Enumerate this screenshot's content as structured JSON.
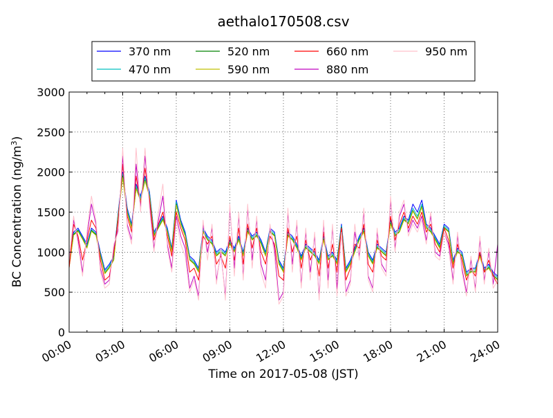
{
  "chart_data": {
    "type": "line",
    "title": "aethalo170508.csv",
    "xlabel": "Time on 2017-05-08 (JST)",
    "ylabel_main": "BC Concentration (ng/m",
    "ylabel_sup": "3",
    "ylabel_close": ")",
    "x_unit": "hours",
    "xlim": [
      0,
      24
    ],
    "ylim": [
      0,
      3000
    ],
    "xticks": [
      0,
      3,
      6,
      9,
      12,
      15,
      18,
      21,
      24
    ],
    "xtick_labels": [
      "00:00",
      "03:00",
      "06:00",
      "09:00",
      "12:00",
      "15:00",
      "18:00",
      "21:00",
      "24:00"
    ],
    "yticks": [
      0,
      500,
      1000,
      1500,
      2000,
      2500,
      3000
    ],
    "ytick_labels": [
      "0",
      "500",
      "1000",
      "1500",
      "2000",
      "2500",
      "3000"
    ],
    "grid": true,
    "legend_position": "top",
    "x": [
      0.0,
      0.25,
      0.5,
      0.75,
      1.0,
      1.25,
      1.5,
      1.75,
      2.0,
      2.25,
      2.5,
      2.75,
      3.0,
      3.25,
      3.5,
      3.75,
      4.0,
      4.25,
      4.5,
      4.75,
      5.0,
      5.25,
      5.5,
      5.75,
      6.0,
      6.25,
      6.5,
      6.75,
      7.0,
      7.25,
      7.5,
      7.75,
      8.0,
      8.25,
      8.5,
      8.75,
      9.0,
      9.25,
      9.5,
      9.75,
      10.0,
      10.25,
      10.5,
      10.75,
      11.0,
      11.25,
      11.5,
      11.75,
      12.0,
      12.25,
      12.5,
      12.75,
      13.0,
      13.25,
      13.5,
      13.75,
      14.0,
      14.25,
      14.5,
      14.75,
      15.0,
      15.25,
      15.5,
      15.75,
      16.0,
      16.25,
      16.5,
      16.75,
      17.0,
      17.25,
      17.5,
      17.75,
      18.0,
      18.25,
      18.5,
      18.75,
      19.0,
      19.25,
      19.5,
      19.75,
      20.0,
      20.25,
      20.5,
      20.75,
      21.0,
      21.25,
      21.5,
      21.75,
      22.0,
      22.25,
      22.5,
      22.75,
      23.0,
      23.25,
      23.5,
      23.75,
      24.0
    ],
    "series": [
      {
        "name": "370 nm",
        "color": "#0000ff",
        "values": [
          850,
          1250,
          1300,
          1200,
          1100,
          1300,
          1250,
          1000,
          780,
          850,
          950,
          1500,
          2000,
          1550,
          1350,
          1850,
          1700,
          1950,
          1750,
          1250,
          1350,
          1450,
          1300,
          1050,
          1650,
          1400,
          1250,
          950,
          900,
          800,
          1300,
          1200,
          1150,
          1000,
          1050,
          1000,
          1150,
          1050,
          1200,
          1000,
          1300,
          1200,
          1250,
          1150,
          1000,
          1300,
          1250,
          900,
          800,
          1250,
          1200,
          1100,
          950,
          1100,
          1050,
          1000,
          900,
          1200,
          950,
          1000,
          900,
          1350,
          800,
          900,
          1050,
          1200,
          1300,
          1000,
          900,
          1100,
          1050,
          1000,
          1400,
          1250,
          1300,
          1450,
          1400,
          1600,
          1500,
          1650,
          1350,
          1300,
          1200,
          1100,
          1350,
          1300,
          900,
          1050,
          1000,
          750,
          800,
          800,
          1000,
          800,
          850,
          750,
          700
        ]
      },
      {
        "name": "470 nm",
        "color": "#00bfbf",
        "values": [
          830,
          1230,
          1280,
          1180,
          1080,
          1280,
          1230,
          980,
          760,
          830,
          930,
          1480,
          1980,
          1530,
          1330,
          1830,
          1680,
          1930,
          1730,
          1230,
          1330,
          1430,
          1280,
          1030,
          1630,
          1380,
          1230,
          930,
          880,
          780,
          1280,
          1180,
          1130,
          980,
          1030,
          980,
          1130,
          1030,
          1180,
          980,
          1280,
          1180,
          1230,
          1130,
          980,
          1280,
          1230,
          880,
          780,
          1230,
          1180,
          1080,
          930,
          1080,
          1030,
          980,
          880,
          1180,
          930,
          980,
          880,
          1330,
          780,
          880,
          1030,
          1180,
          1280,
          980,
          880,
          1080,
          1030,
          980,
          1380,
          1230,
          1280,
          1430,
          1380,
          1550,
          1450,
          1600,
          1330,
          1280,
          1180,
          1080,
          1330,
          1280,
          880,
          1030,
          980,
          730,
          780,
          780,
          980,
          780,
          830,
          730,
          680
        ]
      },
      {
        "name": "520 nm",
        "color": "#008000",
        "values": [
          820,
          1220,
          1270,
          1170,
          1060,
          1270,
          1220,
          960,
          740,
          810,
          910,
          1460,
          1950,
          1500,
          1310,
          1800,
          1650,
          1900,
          1700,
          1210,
          1310,
          1410,
          1260,
          1010,
          1600,
          1360,
          1210,
          910,
          860,
          760,
          1260,
          1160,
          1110,
          960,
          1010,
          960,
          1110,
          1010,
          1160,
          960,
          1260,
          1160,
          1210,
          1110,
          960,
          1260,
          1210,
          860,
          760,
          1210,
          1160,
          1060,
          910,
          1060,
          1010,
          960,
          860,
          1160,
          910,
          960,
          860,
          1310,
          760,
          860,
          1010,
          1160,
          1260,
          960,
          860,
          1060,
          1010,
          960,
          1360,
          1210,
          1260,
          1410,
          1360,
          1520,
          1420,
          1570,
          1310,
          1260,
          1160,
          1060,
          1310,
          1260,
          860,
          1010,
          960,
          710,
          760,
          760,
          960,
          760,
          810,
          710,
          660
        ]
      },
      {
        "name": "590 nm",
        "color": "#bfbf00",
        "values": [
          810,
          1210,
          1260,
          1160,
          1050,
          1260,
          1210,
          950,
          730,
          800,
          900,
          1450,
          1930,
          1490,
          1300,
          1790,
          1640,
          1890,
          1690,
          1200,
          1300,
          1400,
          1250,
          1000,
          1590,
          1350,
          1200,
          900,
          850,
          750,
          1250,
          1150,
          1100,
          950,
          1000,
          950,
          1100,
          1000,
          1150,
          950,
          1250,
          1150,
          1200,
          1100,
          950,
          1250,
          1200,
          850,
          750,
          1200,
          1150,
          1050,
          900,
          1050,
          1000,
          950,
          850,
          1150,
          900,
          950,
          850,
          1300,
          750,
          850,
          1000,
          1150,
          1250,
          950,
          850,
          1050,
          1000,
          950,
          1350,
          1200,
          1250,
          1400,
          1350,
          1510,
          1410,
          1560,
          1300,
          1250,
          1150,
          1050,
          1300,
          1250,
          850,
          1000,
          950,
          700,
          750,
          750,
          950,
          750,
          800,
          700,
          650
        ]
      },
      {
        "name": "660 nm",
        "color": "#ff0000",
        "values": [
          800,
          1350,
          1200,
          900,
          1150,
          1400,
          1300,
          900,
          650,
          700,
          1000,
          1400,
          2100,
          1450,
          1250,
          1950,
          1600,
          2050,
          1650,
          1150,
          1350,
          1500,
          1200,
          950,
          1500,
          1300,
          1150,
          750,
          800,
          650,
          1200,
          1100,
          1200,
          850,
          950,
          800,
          1200,
          900,
          1300,
          850,
          1350,
          1050,
          1300,
          1000,
          850,
          1200,
          1100,
          700,
          650,
          1300,
          1000,
          1200,
          800,
          1150,
          900,
          1050,
          700,
          1250,
          800,
          1100,
          750,
          1300,
          650,
          800,
          1100,
          1050,
          1350,
          850,
          750,
          1150,
          950,
          900,
          1450,
          1150,
          1350,
          1500,
          1300,
          1450,
          1350,
          1500,
          1250,
          1350,
          1100,
          1000,
          1300,
          1150,
          800,
          1100,
          900,
          650,
          800,
          700,
          1000,
          750,
          900,
          700,
          600
        ]
      },
      {
        "name": "880 nm",
        "color": "#bf00bf",
        "values": [
          900,
          1400,
          1150,
          750,
          1200,
          1600,
          1350,
          800,
          600,
          650,
          1050,
          1300,
          2200,
          1350,
          1150,
          2100,
          1550,
          2200,
          1600,
          1050,
          1400,
          1700,
          1100,
          800,
          1450,
          1200,
          1050,
          550,
          700,
          450,
          1350,
          1000,
          1300,
          650,
          1000,
          450,
          1550,
          800,
          1450,
          700,
          1550,
          900,
          1400,
          850,
          650,
          1300,
          1050,
          400,
          500,
          1500,
          850,
          1350,
          600,
          1250,
          750,
          1200,
          450,
          1350,
          650,
          1300,
          550,
          1250,
          500,
          650,
          1250,
          950,
          1500,
          700,
          550,
          1250,
          850,
          750,
          1650,
          1050,
          1450,
          1600,
          1250,
          1400,
          1300,
          1450,
          1150,
          1450,
          1000,
          950,
          1250,
          1100,
          650,
          1200,
          800,
          500,
          900,
          550,
          1150,
          650,
          1000,
          600,
          1100
        ]
      },
      {
        "name": "950 nm",
        "color": "#ffc0cb",
        "values": [
          880,
          1450,
          1100,
          700,
          1250,
          1700,
          1400,
          750,
          550,
          600,
          1100,
          1250,
          2300,
          1300,
          1100,
          2300,
          1500,
          2300,
          1550,
          1000,
          1500,
          1850,
          1050,
          750,
          1400,
          1100,
          950,
          500,
          650,
          400,
          1400,
          900,
          1350,
          600,
          1050,
          400,
          1600,
          700,
          1500,
          650,
          1600,
          800,
          1450,
          750,
          550,
          1350,
          950,
          350,
          450,
          1550,
          750,
          1400,
          550,
          1300,
          650,
          1250,
          400,
          1400,
          550,
          1350,
          450,
          1250,
          450,
          600,
          1350,
          900,
          1550,
          650,
          500,
          1300,
          800,
          700,
          1700,
          1000,
          1500,
          1650,
          1200,
          1350,
          1250,
          1400,
          1100,
          1500,
          950,
          900,
          1250,
          1050,
          600,
          1250,
          750,
          450,
          950,
          500,
          1200,
          600,
          1050,
          550,
          650
        ]
      }
    ]
  }
}
